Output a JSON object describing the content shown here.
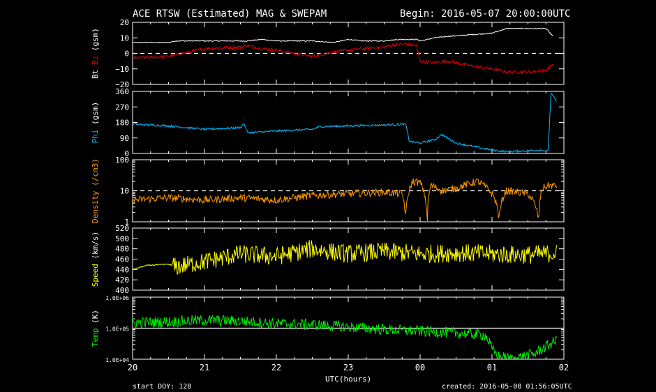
{
  "header": {
    "title": "ACE RTSW (Estimated) MAG & SWEPAM",
    "begin": "Begin: 2016-05-07 20:00:00UTC"
  },
  "footer": {
    "xlabel": "UTC(hours)",
    "start_doy": "start DOY: 128",
    "created": "created: 2016-05-08 01:56:05UTC"
  },
  "colors": {
    "bt": "#ffffff",
    "bz": "#e00000",
    "phi": "#00bfff",
    "density": "#ff9900",
    "speed": "#ffff00",
    "temp": "#00ee00",
    "axis": "#ffffff"
  },
  "x_ticks": [
    "20",
    "21",
    "22",
    "23",
    "00",
    "01",
    "02"
  ],
  "chart_data": [
    {
      "type": "line",
      "ylabel_parts": [
        "Bt",
        "Bz",
        "(gsm)"
      ],
      "ylim": [
        -20,
        20
      ],
      "yticks": [
        "20",
        "10",
        "0",
        "−10",
        "−20"
      ],
      "ytick_values": [
        20,
        10,
        0,
        -10,
        -20
      ],
      "ref_line": 0,
      "x": [
        20.0,
        20.5,
        20.6,
        21.0,
        21.5,
        21.6,
        21.8,
        22.0,
        22.5,
        22.8,
        23.0,
        23.2,
        23.5,
        23.7,
        23.8,
        23.95,
        24.0,
        24.2,
        24.4,
        24.7,
        25.0,
        25.2,
        25.5,
        25.75,
        25.85
      ],
      "series": [
        {
          "name": "Bt",
          "color_key": "bt",
          "values": [
            7,
            7,
            8,
            8,
            8,
            8,
            9,
            8,
            8,
            7,
            9,
            8,
            8,
            9,
            9,
            9,
            8,
            10,
            11,
            12,
            13,
            16,
            16,
            16,
            11
          ]
        },
        {
          "name": "Bz",
          "color_key": "bz",
          "values": [
            -3,
            -2,
            -1,
            3,
            4,
            5,
            3,
            2,
            -2,
            1,
            2,
            3,
            4,
            6,
            6,
            5,
            -5,
            -6,
            -5,
            -8,
            -10,
            -12,
            -12,
            -11,
            -7
          ]
        }
      ]
    },
    {
      "type": "line",
      "ylabel_parts": [
        "Phi",
        "(gsm)"
      ],
      "ylim": [
        0,
        360
      ],
      "yticks": [
        "360",
        "270",
        "180",
        "90",
        "0"
      ],
      "ytick_values": [
        360,
        270,
        180,
        90,
        0
      ],
      "x": [
        20.0,
        20.5,
        21.0,
        21.5,
        21.55,
        21.6,
        22.0,
        22.5,
        22.6,
        23.0,
        23.5,
        23.8,
        23.85,
        24.0,
        24.2,
        24.3,
        24.5,
        25.0,
        25.2,
        25.7,
        25.78,
        25.82,
        25.9
      ],
      "series": [
        {
          "name": "Phi",
          "color_key": "phi",
          "values": [
            170,
            160,
            140,
            150,
            175,
            120,
            130,
            140,
            155,
            160,
            165,
            170,
            70,
            60,
            80,
            110,
            60,
            20,
            10,
            20,
            10,
            350,
            300
          ]
        }
      ]
    },
    {
      "type": "line",
      "ylabel_parts": [
        "Density",
        "(/cm3)"
      ],
      "yscale": "log",
      "ylim": [
        1,
        100
      ],
      "yticks": [
        "100",
        "10",
        "1"
      ],
      "ytick_values": [
        100,
        10,
        1
      ],
      "ref_line": 10,
      "x": [
        20.0,
        20.5,
        21.0,
        21.5,
        22.0,
        22.5,
        23.0,
        23.5,
        23.75,
        23.8,
        23.9,
        24.0,
        24.1,
        24.15,
        24.3,
        24.5,
        24.8,
        25.0,
        25.1,
        25.2,
        25.5,
        25.65,
        25.7,
        25.8,
        25.9
      ],
      "series": [
        {
          "name": "Density",
          "color_key": "density",
          "values": [
            5,
            6,
            5,
            6,
            5,
            7,
            8,
            9,
            8,
            1,
            20,
            18,
            1,
            15,
            10,
            12,
            20,
            8,
            1.2,
            10,
            8,
            1,
            12,
            15,
            14
          ]
        }
      ]
    },
    {
      "type": "line",
      "ylabel_parts": [
        "Speed",
        "(km/s)"
      ],
      "ylim": [
        400,
        520
      ],
      "yticks": [
        "520",
        "500",
        "480",
        "460",
        "440",
        "420",
        "400"
      ],
      "ytick_values": [
        520,
        500,
        480,
        460,
        440,
        420,
        400
      ],
      "x": [
        20.0,
        20.2,
        20.5,
        20.6,
        21.0,
        21.5,
        22.0,
        22.5,
        23.0,
        23.5,
        24.0,
        24.5,
        25.0,
        25.5,
        25.9
      ],
      "series": [
        {
          "name": "Speed",
          "color_key": "speed",
          "values": [
            440,
            448,
            450,
            445,
            455,
            470,
            465,
            480,
            470,
            475,
            470,
            472,
            470,
            468,
            472
          ]
        }
      ]
    },
    {
      "type": "line",
      "ylabel_parts": [
        "Temp",
        "(K)"
      ],
      "yscale": "log",
      "ylim": [
        10000,
        1000000
      ],
      "yticks": [
        "1.0E+06",
        "1.0E+05",
        "1.0E+04"
      ],
      "ytick_values": [
        1000000,
        100000,
        10000
      ],
      "ref_line": 100000,
      "x": [
        20.0,
        20.5,
        21.0,
        21.5,
        22.0,
        22.5,
        23.0,
        23.5,
        24.0,
        24.5,
        24.9,
        25.0,
        25.1,
        25.3,
        25.6,
        25.75,
        25.9
      ],
      "series": [
        {
          "name": "Temp",
          "color_key": "temp",
          "values": [
            150000,
            160000,
            180000,
            170000,
            140000,
            130000,
            110000,
            90000,
            80000,
            70000,
            60000,
            20000,
            12000,
            10000,
            15000,
            25000,
            40000
          ]
        }
      ]
    }
  ]
}
